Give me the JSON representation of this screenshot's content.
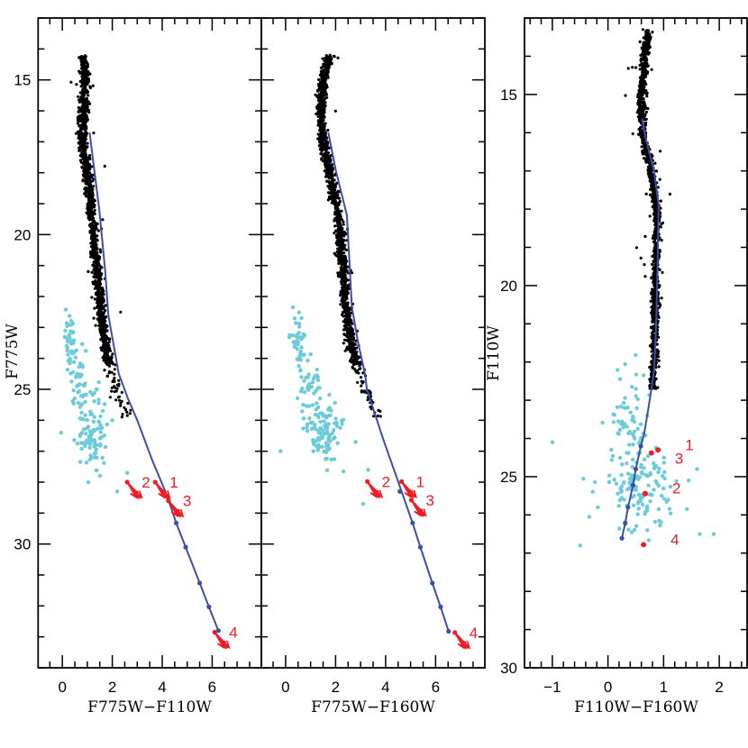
{
  "colors": {
    "sequence": "#000000",
    "secondary": "#6ccbd8",
    "isochrone": "#3a4fa8",
    "stars": "#ee1c24"
  },
  "chart_data": [
    {
      "type": "scatter",
      "xlabel": "F775W−F110W",
      "ylabel": "F775W",
      "xlim": [
        -0.97,
        7.97
      ],
      "ylim": [
        34,
        13
      ],
      "xticks": [
        0,
        2,
        4,
        6
      ],
      "xminor": 0.5,
      "yticks": [
        15,
        20,
        25,
        30
      ],
      "yminor": 1,
      "show_ytick_labels": true,
      "sequence": {
        "ridge": [
          [
            14.2,
            0.85
          ],
          [
            15,
            0.92
          ],
          [
            16,
            0.85
          ],
          [
            17,
            0.8
          ],
          [
            18,
            1.0
          ],
          [
            19,
            1.12
          ],
          [
            20,
            1.25
          ],
          [
            21,
            1.36
          ],
          [
            22,
            1.48
          ],
          [
            23,
            1.62
          ],
          [
            24,
            1.8
          ],
          [
            25,
            2.15
          ],
          [
            25.9,
            2.6
          ]
        ],
        "sigma": 0.09,
        "n_dense": 1400,
        "dense_range": [
          14.2,
          24.2
        ],
        "n_tail": 45
      },
      "secondary_clusters": [
        {
          "cx": 0.3,
          "cy": 23.4,
          "sx": 0.14,
          "sy": 0.55,
          "n": 40
        },
        {
          "cx": 0.7,
          "cy": 25.0,
          "sx": 0.18,
          "sy": 0.55,
          "n": 40
        },
        {
          "cx": 1.2,
          "cy": 26.5,
          "sx": 0.3,
          "sy": 0.55,
          "n": 95
        }
      ],
      "secondary_extra": [
        [
          2.2,
          28.3
        ],
        [
          2.6,
          27.7
        ],
        [
          -0.05,
          26.4
        ],
        [
          2.0,
          26.0
        ]
      ],
      "isochrone": [
        [
          1.09,
          16.7
        ],
        [
          1.48,
          19.2
        ],
        [
          1.72,
          21.2
        ],
        [
          1.84,
          22.6
        ],
        [
          2.26,
          24.5
        ],
        [
          2.63,
          25.3
        ],
        [
          3.0,
          26.0
        ],
        [
          3.59,
          27.27
        ],
        [
          4.19,
          28.43
        ],
        [
          4.56,
          29.32
        ],
        [
          4.94,
          30.1
        ],
        [
          5.5,
          31.26
        ],
        [
          5.87,
          32.03
        ],
        [
          6.25,
          32.8
        ]
      ],
      "isochrone_markers": [
        [
          4.25,
          28.6
        ],
        [
          4.56,
          29.32
        ],
        [
          4.94,
          30.1
        ],
        [
          5.5,
          31.26
        ],
        [
          5.87,
          32.03
        ],
        [
          6.25,
          32.8
        ]
      ],
      "stars": [
        {
          "label": "1",
          "x": 3.72,
          "y": 28.0
        },
        {
          "label": "2",
          "x": 2.6,
          "y": 28.0
        },
        {
          "label": "3",
          "x": 4.25,
          "y": 28.6
        },
        {
          "label": "4",
          "x": 6.1,
          "y": 32.85
        }
      ],
      "reddening_vector": [
        0.5,
        0.55
      ]
    },
    {
      "type": "scatter",
      "xlabel": "F775W−F160W",
      "ylabel": "",
      "xlim": [
        -0.97,
        7.97
      ],
      "ylim": [
        34,
        13
      ],
      "xticks": [
        0,
        2,
        4,
        6
      ],
      "xminor": 0.5,
      "yticks": [
        15,
        20,
        25,
        30
      ],
      "yminor": 1,
      "show_ytick_labels": false,
      "sequence": {
        "ridge": [
          [
            14.2,
            1.75
          ],
          [
            15,
            1.5
          ],
          [
            16,
            1.4
          ],
          [
            17,
            1.5
          ],
          [
            18,
            1.75
          ],
          [
            19,
            2.0
          ],
          [
            20,
            2.2
          ],
          [
            21,
            2.29
          ],
          [
            22,
            2.37
          ],
          [
            23,
            2.5
          ],
          [
            24,
            2.75
          ],
          [
            25,
            3.15
          ],
          [
            25.9,
            3.7
          ]
        ],
        "sigma": 0.09,
        "n_dense": 1400,
        "dense_range": [
          14.2,
          24.2
        ],
        "n_tail": 45
      },
      "secondary_clusters": [
        {
          "cx": 0.5,
          "cy": 23.4,
          "sx": 0.15,
          "sy": 0.55,
          "n": 40
        },
        {
          "cx": 1.0,
          "cy": 25.0,
          "sx": 0.2,
          "sy": 0.55,
          "n": 40
        },
        {
          "cx": 1.6,
          "cy": 26.4,
          "sx": 0.35,
          "sy": 0.5,
          "n": 95
        }
      ],
      "secondary_extra": [
        [
          -0.2,
          27.0
        ],
        [
          3.1,
          28.7
        ],
        [
          3.3,
          27.6
        ],
        [
          2.8,
          26.7
        ]
      ],
      "isochrone": [
        [
          1.71,
          16.7
        ],
        [
          2.0,
          17.9
        ],
        [
          2.45,
          19.37
        ],
        [
          2.55,
          20.8
        ],
        [
          2.65,
          22.33
        ],
        [
          2.9,
          23.5
        ],
        [
          3.19,
          24.55
        ],
        [
          3.25,
          25.0
        ],
        [
          3.9,
          26.6
        ],
        [
          4.57,
          28.14
        ],
        [
          5.08,
          29.32
        ],
        [
          5.39,
          30.1
        ],
        [
          5.87,
          31.26
        ],
        [
          6.2,
          32.03
        ],
        [
          6.52,
          32.82
        ]
      ],
      "isochrone_markers": [
        [
          4.57,
          28.3
        ],
        [
          5.08,
          29.32
        ],
        [
          5.39,
          30.1
        ],
        [
          5.87,
          31.26
        ],
        [
          6.2,
          32.03
        ],
        [
          6.52,
          32.82
        ]
      ],
      "stars": [
        {
          "label": "1",
          "x": 4.64,
          "y": 27.98
        },
        {
          "label": "2",
          "x": 3.27,
          "y": 27.98
        },
        {
          "label": "3",
          "x": 5.03,
          "y": 28.58
        },
        {
          "label": "4",
          "x": 6.77,
          "y": 32.86
        }
      ],
      "reddening_vector": [
        0.5,
        0.55
      ]
    },
    {
      "type": "scatter",
      "xlabel": "F110W−F160W",
      "ylabel": "F110W",
      "xlim": [
        -1.5,
        2.5
      ],
      "ylim": [
        30,
        13
      ],
      "xticks": [
        -1,
        0,
        1,
        2
      ],
      "xminor": 0.2,
      "yticks": [
        15,
        20,
        25,
        30
      ],
      "yminor": 1,
      "show_ytick_labels": true,
      "sequence": {
        "ridge": [
          [
            13.3,
            0.72
          ],
          [
            14,
            0.66
          ],
          [
            15,
            0.6
          ],
          [
            16,
            0.62
          ],
          [
            17,
            0.77
          ],
          [
            18,
            0.88
          ],
          [
            19,
            0.87
          ],
          [
            20,
            0.86
          ],
          [
            21,
            0.84
          ],
          [
            22,
            0.82
          ],
          [
            22.7,
            0.8
          ]
        ],
        "sigma": 0.035,
        "n_dense": 1300,
        "dense_range": [
          13.3,
          22.7
        ],
        "n_tail": 0
      },
      "secondary_clusters": [
        {
          "cx": 0.4,
          "cy": 23.4,
          "sx": 0.2,
          "sy": 0.55,
          "n": 60
        },
        {
          "cx": 0.6,
          "cy": 25.3,
          "sx": 0.35,
          "sy": 0.6,
          "n": 130
        }
      ],
      "secondary_extra": [
        [
          -1.0,
          24.1
        ],
        [
          1.9,
          26.5
        ],
        [
          -0.5,
          26.8
        ],
        [
          1.65,
          26.5
        ],
        [
          1.6,
          24.8
        ],
        [
          1.45,
          25.1
        ]
      ],
      "isochrone": [
        [
          0.61,
          15.63
        ],
        [
          0.68,
          16.15
        ],
        [
          0.83,
          17.02
        ],
        [
          0.91,
          17.89
        ],
        [
          0.89,
          19.5
        ],
        [
          0.87,
          20.88
        ],
        [
          0.83,
          22.22
        ],
        [
          0.75,
          23.0
        ],
        [
          0.65,
          23.88
        ],
        [
          0.59,
          24.2
        ],
        [
          0.5,
          24.8
        ],
        [
          0.45,
          25.22
        ],
        [
          0.36,
          25.8
        ],
        [
          0.31,
          26.21
        ],
        [
          0.25,
          26.61
        ]
      ],
      "isochrone_markers": [
        [
          0.59,
          24.2
        ],
        [
          0.5,
          24.8
        ],
        [
          0.45,
          25.22
        ],
        [
          0.36,
          25.8
        ],
        [
          0.31,
          26.21
        ],
        [
          0.25,
          26.61
        ]
      ],
      "stars": [
        {
          "label": "1",
          "x": 0.9,
          "y": 24.3
        },
        {
          "label": "3",
          "x": 0.78,
          "y": 24.38
        },
        {
          "label": "2",
          "x": 0.67,
          "y": 25.44
        },
        {
          "label": "4",
          "x": 0.64,
          "y": 26.78
        }
      ],
      "reddening_vector": null
    }
  ]
}
